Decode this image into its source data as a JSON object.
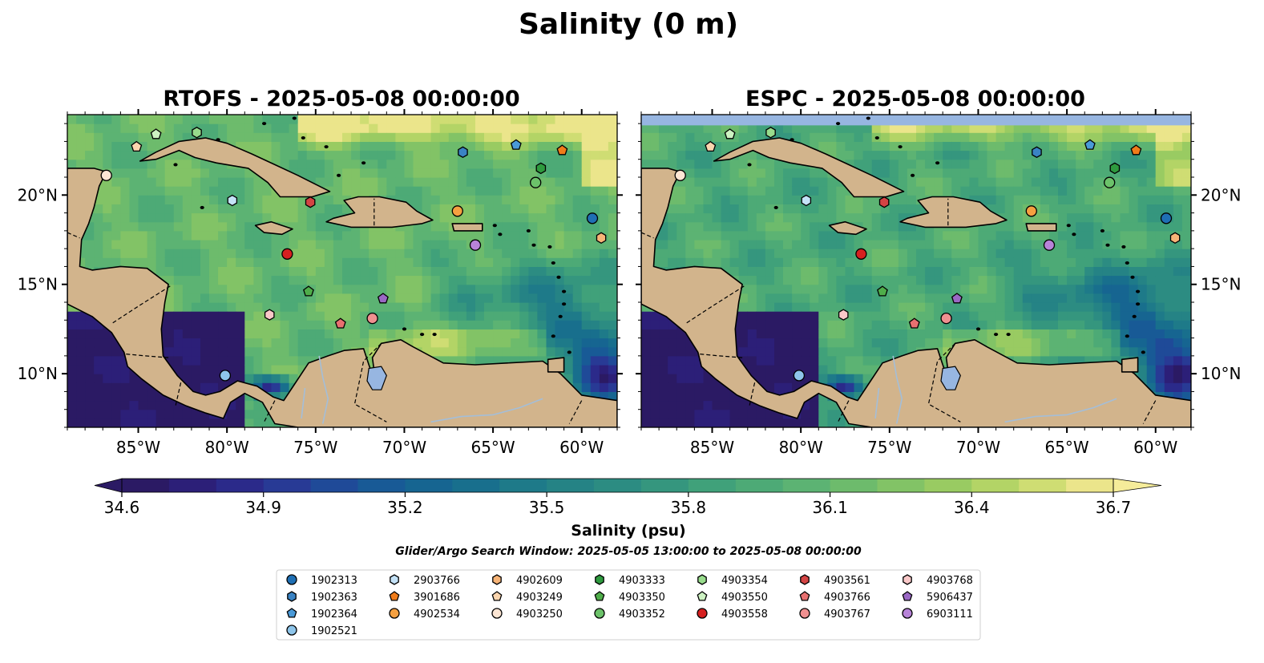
{
  "figure": {
    "title": "Salinity (0 m)",
    "search_window": "Glider/Argo Search Window: 2025-05-05 13:00:00 to 2025-05-08 00:00:00"
  },
  "colors": {
    "land": "#d2b48c",
    "lake": "#97b6e1",
    "river": "#a4bed8",
    "coast": "#000000"
  },
  "colorbar": {
    "label": "Salinity (psu)",
    "min": 34.6,
    "max": 36.7,
    "ticks": [
      "34.6",
      "34.9",
      "35.2",
      "35.5",
      "35.8",
      "36.1",
      "36.4",
      "36.7"
    ],
    "extend": "both",
    "colors": [
      "#2b1a64",
      "#2c1f78",
      "#2b2a8a",
      "#283a95",
      "#1f4a98",
      "#185a96",
      "#166591",
      "#186f8d",
      "#1e7a89",
      "#258385",
      "#2c8c82",
      "#35967e",
      "#40a17a",
      "#4daa76",
      "#5cb373",
      "#6dbb6c",
      "#82c366",
      "#99cb62",
      "#b3d466",
      "#cfdd73",
      "#ebe58b"
    ]
  },
  "chart_data": [
    {
      "type": "heatmap",
      "title": "RTOFS - 2025-05-08 00:00:00",
      "x_ticks": [
        "85°W",
        "80°W",
        "75°W",
        "70°W",
        "65°W",
        "60°W"
      ],
      "y_ticks": [
        "10°N",
        "15°N",
        "20°N"
      ],
      "xlim": [
        -89,
        -58
      ],
      "ylim": [
        7,
        24.5
      ],
      "y_tick_side": "left",
      "no_data_band": false,
      "field": {
        "background": 36.1,
        "south_low": 34.6,
        "east_low": 35.4,
        "north_high": 36.65
      }
    },
    {
      "type": "heatmap",
      "title": "ESPC - 2025-05-08 00:00:00",
      "x_ticks": [
        "85°W",
        "80°W",
        "75°W",
        "70°W",
        "65°W",
        "60°W"
      ],
      "y_ticks": [
        "10°N",
        "15°N",
        "20°N"
      ],
      "xlim": [
        -89,
        -58
      ],
      "ylim": [
        7,
        24.5
      ],
      "y_tick_side": "right",
      "no_data_band": true,
      "field": {
        "background": 35.95,
        "south_low": 34.6,
        "east_low": 35.2,
        "north_high": 36.45
      }
    }
  ],
  "stations": [
    {
      "id": "1902313",
      "lon": -59.4,
      "lat": 18.7,
      "marker": "circle",
      "color": "#1f6fb4"
    },
    {
      "id": "1902363",
      "lon": -66.7,
      "lat": 22.4,
      "marker": "hexagon",
      "color": "#3a83c4"
    },
    {
      "id": "1902364",
      "lon": -63.7,
      "lat": 22.8,
      "marker": "pentagon",
      "color": "#4a9ad8"
    },
    {
      "id": "1902521",
      "lon": -80.1,
      "lat": 9.9,
      "marker": "circle",
      "color": "#8ec5ea"
    },
    {
      "id": "2903766",
      "lon": -79.7,
      "lat": 19.7,
      "marker": "hexagon",
      "color": "#c4e2f7"
    },
    {
      "id": "3901686",
      "lon": -61.1,
      "lat": 22.5,
      "marker": "pentagon",
      "color": "#f07c1a"
    },
    {
      "id": "4902534",
      "lon": -67.0,
      "lat": 19.1,
      "marker": "circle",
      "color": "#f5a040"
    },
    {
      "id": "4902609",
      "lon": -58.9,
      "lat": 17.6,
      "marker": "hexagon",
      "color": "#f7b477"
    },
    {
      "id": "4903249",
      "lon": -85.1,
      "lat": 22.7,
      "marker": "pentagon",
      "color": "#fbd5ae"
    },
    {
      "id": "4903250",
      "lon": -86.8,
      "lat": 21.1,
      "marker": "circle",
      "color": "#fde6d4"
    },
    {
      "id": "4903333",
      "lon": -62.3,
      "lat": 21.5,
      "marker": "hexagon",
      "color": "#2e9a3e"
    },
    {
      "id": "4903350",
      "lon": -75.4,
      "lat": 14.6,
      "marker": "pentagon",
      "color": "#4fad4a"
    },
    {
      "id": "4903352",
      "lon": -62.6,
      "lat": 20.7,
      "marker": "circle",
      "color": "#6cc26a"
    },
    {
      "id": "4903354",
      "lon": -81.7,
      "lat": 23.5,
      "marker": "hexagon",
      "color": "#98dc8c"
    },
    {
      "id": "4903550",
      "lon": -84.0,
      "lat": 23.4,
      "marker": "pentagon",
      "color": "#cdf2c2"
    },
    {
      "id": "4903558",
      "lon": -76.6,
      "lat": 16.7,
      "marker": "circle",
      "color": "#d62020"
    },
    {
      "id": "4903561",
      "lon": -75.3,
      "lat": 19.6,
      "marker": "hexagon",
      "color": "#d44444"
    },
    {
      "id": "4903766",
      "lon": -73.6,
      "lat": 12.8,
      "marker": "pentagon",
      "color": "#e87070"
    },
    {
      "id": "4903767",
      "lon": -71.8,
      "lat": 13.1,
      "marker": "circle",
      "color": "#f09090"
    },
    {
      "id": "4903768",
      "lon": -77.6,
      "lat": 13.3,
      "marker": "hexagon",
      "color": "#f9c8c8"
    },
    {
      "id": "5906437",
      "lon": -71.2,
      "lat": 14.2,
      "marker": "pentagon",
      "color": "#9a68c4"
    },
    {
      "id": "6903111",
      "lon": -66.0,
      "lat": 17.2,
      "marker": "circle",
      "color": "#b783d8"
    }
  ]
}
